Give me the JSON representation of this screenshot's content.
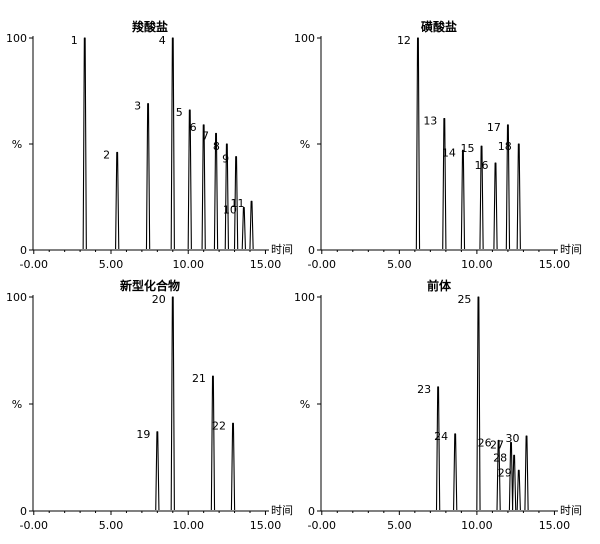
{
  "chart_data": [
    {
      "type": "line",
      "title": "羧酸盐",
      "xlabel": "时间",
      "ylabel": "%",
      "xlim": [
        -0.05,
        15.1
      ],
      "ylim": [
        0,
        100
      ],
      "xticks": [
        "-0.00",
        "5.00",
        "10.00",
        "15.00"
      ],
      "yticks": [
        "0",
        "50",
        "100"
      ],
      "peaks": [
        {
          "label": "1",
          "x": 3.3,
          "y": 100
        },
        {
          "label": "2",
          "x": 5.4,
          "y": 46
        },
        {
          "label": "3",
          "x": 7.4,
          "y": 69
        },
        {
          "label": "4",
          "x": 9.0,
          "y": 100
        },
        {
          "label": "5",
          "x": 10.1,
          "y": 66
        },
        {
          "label": "6",
          "x": 11.0,
          "y": 59
        },
        {
          "label": "7",
          "x": 11.8,
          "y": 55
        },
        {
          "label": "8",
          "x": 12.5,
          "y": 50
        },
        {
          "label": "9",
          "x": 13.1,
          "y": 44
        },
        {
          "label": "10",
          "x": 13.6,
          "y": 20
        },
        {
          "label": "11",
          "x": 14.1,
          "y": 23
        }
      ]
    },
    {
      "type": "line",
      "title": "磺酸盐",
      "xlabel": "时间",
      "ylabel": "%",
      "xlim": [
        -0.05,
        15.1
      ],
      "ylim": [
        0,
        100
      ],
      "xticks": [
        "-0.00",
        "5.00",
        "10.00",
        "15.00"
      ],
      "yticks": [
        "0",
        "50",
        "100"
      ],
      "peaks": [
        {
          "label": "12",
          "x": 6.2,
          "y": 100
        },
        {
          "label": "13",
          "x": 7.9,
          "y": 62
        },
        {
          "label": "14",
          "x": 9.1,
          "y": 47
        },
        {
          "label": "15",
          "x": 10.3,
          "y": 49
        },
        {
          "label": "16",
          "x": 11.2,
          "y": 41
        },
        {
          "label": "17",
          "x": 12.0,
          "y": 59
        },
        {
          "label": "18",
          "x": 12.7,
          "y": 50
        }
      ]
    },
    {
      "type": "line",
      "title": "新型化合物",
      "xlabel": "时间",
      "ylabel": "%",
      "xlim": [
        -0.05,
        15.1
      ],
      "ylim": [
        0,
        100
      ],
      "xticks": [
        "-0.00",
        "5.00",
        "10.00",
        "15.00"
      ],
      "yticks": [
        "0",
        "50",
        "100"
      ],
      "peaks": [
        {
          "label": "19",
          "x": 8.0,
          "y": 37
        },
        {
          "label": "20",
          "x": 9.0,
          "y": 100
        },
        {
          "label": "21",
          "x": 11.6,
          "y": 63
        },
        {
          "label": "22",
          "x": 12.9,
          "y": 41
        }
      ]
    },
    {
      "type": "line",
      "title": "前体",
      "xlabel": "时间",
      "ylabel": "%",
      "xlim": [
        -0.05,
        15.1
      ],
      "ylim": [
        0,
        100
      ],
      "xticks": [
        "-0.00",
        "5.00",
        "10.00",
        "15.00"
      ],
      "yticks": [
        "0",
        "50",
        "100"
      ],
      "peaks": [
        {
          "label": "23",
          "x": 7.5,
          "y": 58
        },
        {
          "label": "24",
          "x": 8.6,
          "y": 36
        },
        {
          "label": "25",
          "x": 10.1,
          "y": 100
        },
        {
          "label": "26",
          "x": 11.4,
          "y": 33
        },
        {
          "label": "27",
          "x": 12.2,
          "y": 32
        },
        {
          "label": "28",
          "x": 12.4,
          "y": 26
        },
        {
          "label": "29",
          "x": 12.7,
          "y": 19
        },
        {
          "label": "30",
          "x": 13.2,
          "y": 35
        }
      ]
    }
  ]
}
